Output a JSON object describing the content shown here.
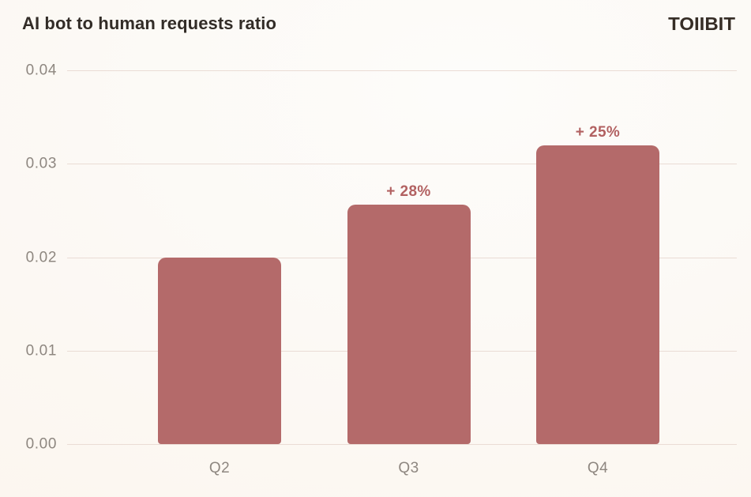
{
  "header": {
    "title": "AI bot to human requests ratio",
    "logo": "TOIIBIT"
  },
  "chart_data": {
    "type": "bar",
    "title": "AI bot to human requests ratio",
    "categories": [
      "Q2",
      "Q3",
      "Q4"
    ],
    "values": [
      0.02,
      0.0256,
      0.032
    ],
    "bar_labels": [
      "",
      "+ 28%",
      "+ 25%"
    ],
    "yticks": [
      "0.04",
      "0.03",
      "0.02",
      "0.01",
      "0.00"
    ],
    "ylim": [
      0,
      0.04
    ],
    "xlabel": "",
    "ylabel": "",
    "grid": "horizontal-only",
    "legend": "none",
    "bar_color": "#b46a6a",
    "annotation_color": "#b26161"
  },
  "colors": {
    "background_start": "#fdfcfa",
    "background_mid": "#fcf8f3",
    "background_end": "#fcf5ed",
    "title": "#322c27",
    "logo": "#362d26",
    "axis_text": "#8e8780",
    "gridline": "#eadcd5",
    "bar_color": "#b46a6a",
    "delta": "#b26161"
  }
}
